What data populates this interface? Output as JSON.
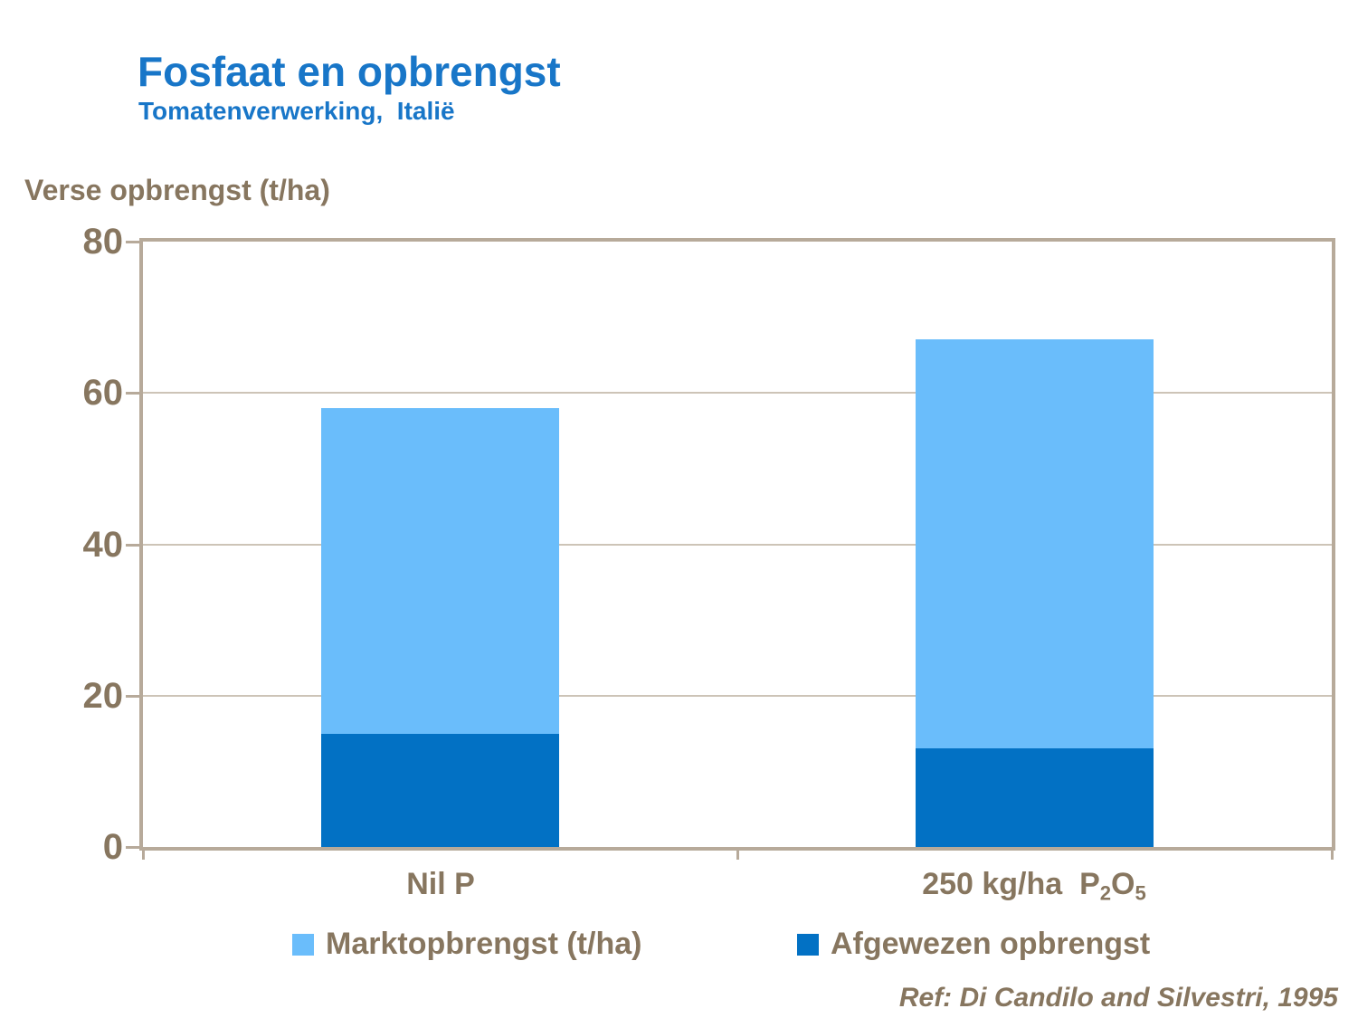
{
  "header": {
    "title": "Fosfaat en opbrengst",
    "subtitle": "Tomatenverwerking,  Italië",
    "title_color": "#1876C8"
  },
  "chart_data": {
    "type": "bar",
    "stacked": true,
    "title": "Fosfaat en opbrengst",
    "subtitle": "Tomatenverwerking, Italië",
    "ylabel": "Verse opbrengst (t/ha)",
    "categories": [
      "Nil P",
      "250 kg/ha P₂O₅"
    ],
    "series": [
      {
        "name": "Afgewezen opbrengst",
        "color": "#0271C4",
        "values": [
          15,
          13
        ]
      },
      {
        "name": "Marktopbrengst (t/ha)",
        "color": "#6ABDFB",
        "values": [
          43,
          54
        ]
      }
    ],
    "stack_order": "bottom-to-top",
    "totals": [
      58,
      67
    ],
    "ylim": [
      0,
      80
    ],
    "yticks": [
      0,
      20,
      40,
      60,
      80
    ],
    "grid": "horizontal-only",
    "legend_position": "bottom",
    "frame_color": "#B7AA9A",
    "gridline_color": "#CDC4B7",
    "axis_text_color": "#87765F"
  },
  "x_labels": {
    "label1": "Nil P",
    "label2": {
      "pre": "250 kg/ha  P",
      "sub1": "2",
      "mid": "O",
      "sub2": "5"
    }
  },
  "legend": {
    "items": [
      {
        "label": "Marktopbrengst (t/ha)",
        "color": "#6ABDFB"
      },
      {
        "label": "Afgewezen opbrengst",
        "color": "#0271C4"
      }
    ]
  },
  "footer": {
    "reference": "Ref: Di Candilo and Silvestri, 1995"
  }
}
